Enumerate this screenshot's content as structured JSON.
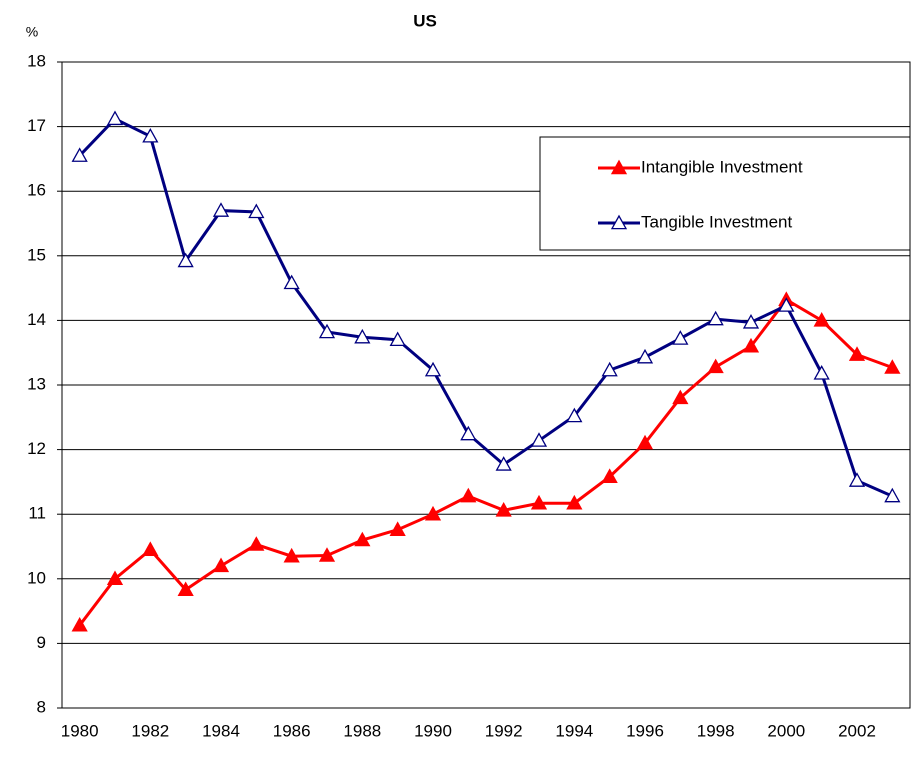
{
  "chart_data": {
    "type": "line",
    "title": "US",
    "y_label": "%",
    "categories": [
      "1980",
      null,
      "1982",
      null,
      "1984",
      null,
      "1986",
      null,
      "1988",
      null,
      "1990",
      null,
      "1992",
      null,
      "1994",
      null,
      "1996",
      null,
      "1998",
      null,
      "2000",
      null,
      "2002",
      null
    ],
    "series": [
      {
        "name": "Intangible Investment",
        "color": "#ff0000",
        "marker": "filled-triangle",
        "values": [
          9.28,
          10.0,
          10.45,
          9.83,
          10.2,
          10.53,
          10.35,
          10.36,
          10.6,
          10.76,
          11.0,
          11.28,
          11.06,
          11.17,
          11.17,
          11.58,
          12.1,
          12.8,
          13.28,
          13.6,
          14.32,
          14.0,
          13.47,
          13.27
        ]
      },
      {
        "name": "Tangible Investment",
        "color": "#000080",
        "marker": "hollow-triangle",
        "values": [
          16.55,
          17.12,
          16.85,
          14.92,
          15.7,
          15.68,
          14.58,
          13.82,
          13.74,
          13.7,
          13.23,
          12.24,
          11.77,
          12.14,
          12.52,
          13.23,
          13.43,
          13.72,
          14.02,
          13.97,
          14.23,
          13.18,
          11.52,
          11.28
        ]
      }
    ],
    "ylim": [
      8,
      18
    ],
    "yticks": [
      8,
      9,
      10,
      11,
      12,
      13,
      14,
      15,
      16,
      17,
      18
    ],
    "grid": true,
    "legend": "upper right"
  }
}
